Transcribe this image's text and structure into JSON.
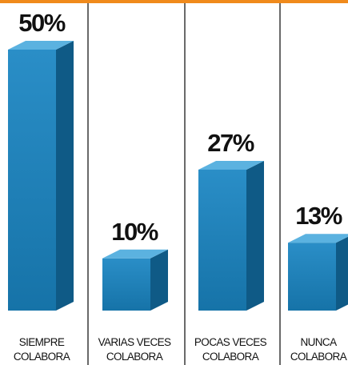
{
  "chart_data": {
    "type": "bar",
    "categories": [
      [
        "SIEMPRE",
        "COLABORA"
      ],
      [
        "VARIAS VECES",
        "COLABORA"
      ],
      [
        "POCAS VECES",
        "COLABORA"
      ],
      [
        "NUNCA",
        "COLABORA"
      ]
    ],
    "values": [
      50,
      10,
      27,
      13
    ],
    "value_labels": [
      "50%",
      "10%",
      "27%",
      "13%"
    ],
    "title": "",
    "xlabel": "",
    "ylabel": "",
    "ylim": [
      0,
      50
    ],
    "grid": false,
    "style": "3d-bars",
    "colors": {
      "accent_bar": "#f08a1c",
      "divider": "#1a1a1a",
      "bar_front_top": "#2a8ec7",
      "bar_front_bottom": "#1673a8",
      "bar_side": "#0f5a86",
      "bar_top": "#5bb2e0",
      "text": "#111111"
    }
  }
}
